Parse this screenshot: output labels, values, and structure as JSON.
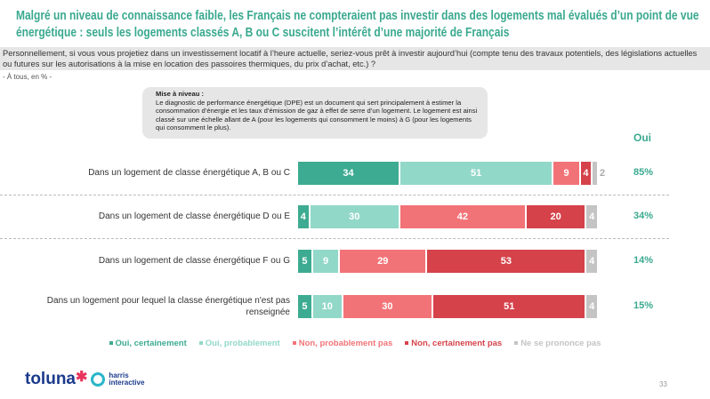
{
  "title": "Malgré un niveau de connaissance faible, les Français ne compteraient pas investir dans des logements mal évalués d’un point de vue énergétique : seuls les logements classés A, B ou C suscitent l’intérêt d’une majorité de Français",
  "question": "Personnellement, si vous vous projetiez dans un investissement locatif à l’heure actuelle, seriez-vous prêt à investir aujourd’hui (compte tenu des travaux potentiels, des législations actuelles ou futures sur les autorisations à la mise en location des passoires thermiques, du prix d’achat, etc.) ?",
  "base": "- À tous, en % -",
  "note": {
    "title": "Mise à niveau :",
    "text": "Le diagnostic de performance énergétique (DPE) est un document qui sert principalement à estimer la consommation d’énergie et les taux d’émission de gaz à effet de serre d’un logement. Le logement est ainsi classé sur une échelle allant de A (pour les logements qui consomment le moins) à G (pour les logements qui consomment le plus)."
  },
  "page_number": "33",
  "logo": {
    "brand1": "toluna",
    "brand2_line1": "harris",
    "brand2_line2": "interactive"
  },
  "chart_data": {
    "type": "bar",
    "orientation": "horizontal",
    "stacked": true,
    "xlim": [
      0,
      100
    ],
    "legend": "bottom",
    "summary_header": "Oui",
    "categories": [
      "Dans un logement de classe énergétique A, B ou C",
      "Dans un logement de classe énergétique D ou E",
      "Dans un logement de classe énergétique F ou G",
      "Dans un logement pour lequel la classe énergétique n'est pas renseignée"
    ],
    "series": [
      {
        "name": "Oui, certainement",
        "color": "#3dab91",
        "values": [
          34,
          4,
          5,
          5
        ]
      },
      {
        "name": "Oui, probablement",
        "color": "#92d8c9",
        "values": [
          51,
          30,
          9,
          10
        ]
      },
      {
        "name": "Non, probablement pas",
        "color": "#f27377",
        "values": [
          9,
          42,
          29,
          30
        ]
      },
      {
        "name": "Non, certainement pas",
        "color": "#d5424a",
        "values": [
          4,
          20,
          53,
          51
        ]
      },
      {
        "name": "Ne se prononce pas",
        "color": "#c4c4c4",
        "values": [
          2,
          4,
          4,
          4
        ]
      }
    ],
    "summary": [
      "85%",
      "34%",
      "14%",
      "15%"
    ]
  }
}
